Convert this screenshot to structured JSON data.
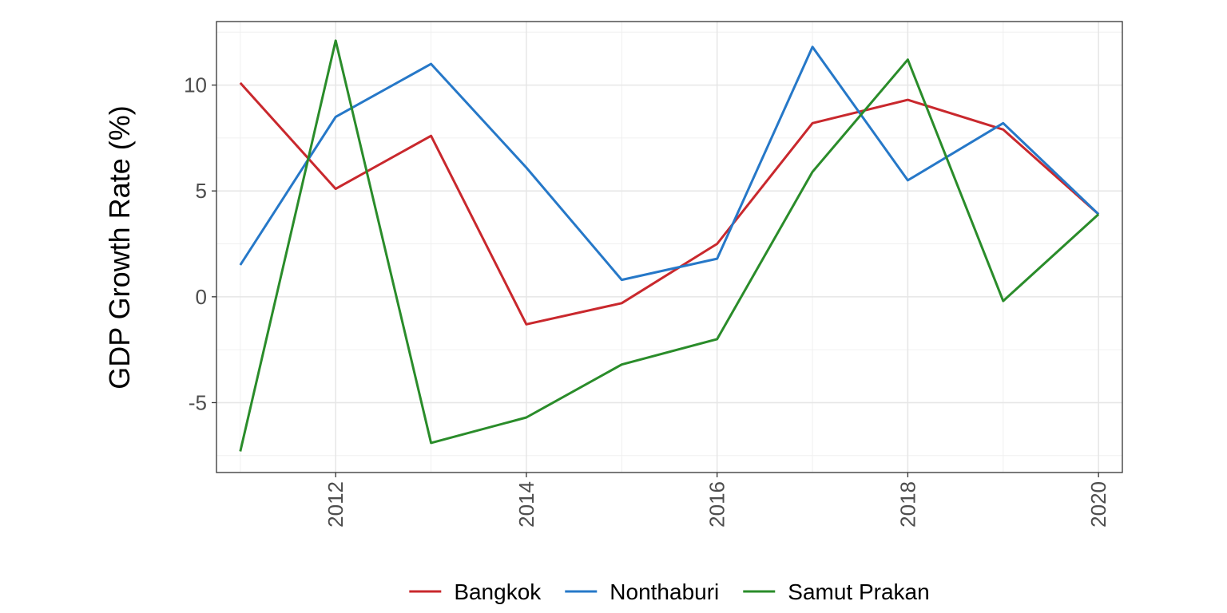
{
  "chart_data": {
    "type": "line",
    "title": "",
    "xlabel": "",
    "ylabel": "GDP Growth Rate (%)",
    "x": [
      2011,
      2012,
      2013,
      2014,
      2015,
      2016,
      2017,
      2018,
      2019,
      2020
    ],
    "x_ticks": [
      "2012",
      "2014",
      "2016",
      "2018",
      "2020"
    ],
    "y_ticks": [
      "-5",
      "0",
      "5",
      "10"
    ],
    "xlim": [
      2010.75,
      2020.25
    ],
    "ylim": [
      -8.3,
      13.0
    ],
    "grid": true,
    "legend_position": "bottom",
    "series": [
      {
        "name": "Bangkok",
        "color": "#c9282d",
        "values": [
          10.1,
          5.1,
          7.6,
          -1.3,
          -0.3,
          2.5,
          8.2,
          9.3,
          7.9,
          3.9
        ]
      },
      {
        "name": "Nonthaburi",
        "color": "#2678c8",
        "values": [
          1.5,
          8.5,
          11.0,
          6.1,
          0.8,
          1.8,
          11.8,
          5.5,
          8.2,
          3.9
        ]
      },
      {
        "name": "Samut Prakan",
        "color": "#2a8c2a",
        "values": [
          -7.3,
          12.1,
          -6.9,
          -5.7,
          -3.2,
          -2.0,
          5.9,
          11.2,
          -0.2,
          3.9
        ]
      }
    ]
  }
}
